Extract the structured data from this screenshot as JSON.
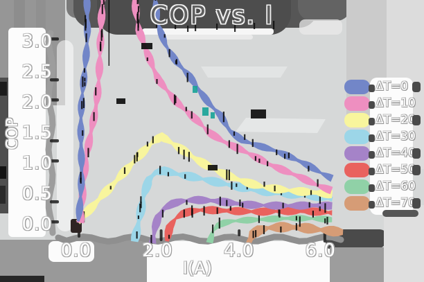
{
  "figure": {
    "title": "COP vs. I",
    "x_axis_label": "I(A)",
    "y_axis_label": "COP"
  },
  "chart_data": {
    "type": "line",
    "title": "COP vs. I",
    "xlabel": "I(A)",
    "ylabel": "COP",
    "x_ticks": [
      {
        "label": "0.0",
        "value": 0
      },
      {
        "label": "2.0",
        "value": 2
      },
      {
        "label": "4.0",
        "value": 4
      },
      {
        "label": "6.0",
        "value": 6
      }
    ],
    "y_ticks": [
      {
        "label": "0.0",
        "value": 0
      },
      {
        "label": "0.5",
        "value": 0.5
      },
      {
        "label": "1.0",
        "value": 1
      },
      {
        "label": "1.5",
        "value": 1.5
      },
      {
        "label": "2.0",
        "value": 2
      },
      {
        "label": "2.5",
        "value": 2.5
      },
      {
        "label": "3.0",
        "value": 3
      }
    ],
    "xlim": [
      0,
      6.6
    ],
    "ylim": [
      -0.3,
      3.45
    ],
    "grid": false,
    "legend_position": "right",
    "series": [
      {
        "name": "ΔT=0",
        "color": "#7286c8",
        "points": [
          [
            0.05,
            0.05
          ],
          [
            0.28,
            3.85
          ],
          [
            1.93,
            3.85
          ],
          [
            2.05,
            3.28
          ],
          [
            2.2,
            2.95
          ],
          [
            2.45,
            2.65
          ],
          [
            2.75,
            2.42
          ],
          [
            3.0,
            2.18
          ],
          [
            3.25,
            1.98
          ],
          [
            3.55,
            1.8
          ],
          [
            3.8,
            1.55
          ],
          [
            4.1,
            1.4
          ],
          [
            4.5,
            1.3
          ],
          [
            4.9,
            1.2
          ],
          [
            5.3,
            1.07
          ],
          [
            5.7,
            0.94
          ],
          [
            6.0,
            0.83
          ],
          [
            6.28,
            0.75
          ]
        ]
      },
      {
        "name": "ΔT=10",
        "color": "#ee8fc0",
        "points": [
          [
            0.07,
            0.03
          ],
          [
            0.45,
            1.9
          ],
          [
            0.63,
            3.1
          ],
          [
            0.7,
            3.85
          ],
          [
            1.45,
            3.85
          ],
          [
            1.55,
            3.2
          ],
          [
            1.7,
            2.85
          ],
          [
            1.86,
            2.55
          ],
          [
            2.0,
            2.35
          ],
          [
            2.2,
            2.2
          ],
          [
            2.45,
            2.02
          ],
          [
            2.7,
            1.88
          ],
          [
            3.0,
            1.72
          ],
          [
            3.3,
            1.52
          ],
          [
            3.6,
            1.38
          ],
          [
            3.95,
            1.25
          ],
          [
            4.3,
            1.12
          ],
          [
            4.7,
            0.97
          ],
          [
            5.1,
            0.87
          ],
          [
            5.5,
            0.78
          ],
          [
            5.9,
            0.67
          ],
          [
            6.28,
            0.58
          ]
        ]
      },
      {
        "name": "ΔT=20",
        "color": "#f8f59d",
        "points": [
          [
            0.07,
            0.02
          ],
          [
            0.45,
            0.3
          ],
          [
            0.85,
            0.62
          ],
          [
            1.25,
            0.95
          ],
          [
            1.6,
            1.2
          ],
          [
            1.9,
            1.38
          ],
          [
            2.1,
            1.44
          ],
          [
            2.35,
            1.32
          ],
          [
            2.6,
            1.2
          ],
          [
            2.9,
            1.06
          ],
          [
            3.2,
            0.95
          ],
          [
            3.5,
            0.86
          ],
          [
            3.85,
            0.78
          ],
          [
            4.2,
            0.71
          ],
          [
            4.6,
            0.64
          ],
          [
            5.0,
            0.59
          ],
          [
            5.45,
            0.54
          ],
          [
            5.9,
            0.5
          ],
          [
            6.28,
            0.47
          ]
        ]
      },
      {
        "name": "ΔT=30",
        "color": "#9cd6e8",
        "points": [
          [
            1.43,
            -0.28
          ],
          [
            1.52,
            0.12
          ],
          [
            1.63,
            0.5
          ],
          [
            1.78,
            0.75
          ],
          [
            1.95,
            0.85
          ],
          [
            2.15,
            0.87
          ],
          [
            2.5,
            0.8
          ],
          [
            2.9,
            0.75
          ],
          [
            3.3,
            0.7
          ],
          [
            3.7,
            0.66
          ],
          [
            4.1,
            0.62
          ],
          [
            4.5,
            0.58
          ],
          [
            4.9,
            0.54
          ],
          [
            5.3,
            0.5
          ],
          [
            5.7,
            0.46
          ],
          [
            6.0,
            0.43
          ],
          [
            6.28,
            0.39
          ]
        ]
      },
      {
        "name": "ΔT=40",
        "color": "#a583c8",
        "points": [
          [
            1.84,
            -0.3
          ],
          [
            1.92,
            -0.05
          ],
          [
            2.02,
            0.12
          ],
          [
            2.17,
            0.25
          ],
          [
            2.37,
            0.32
          ],
          [
            2.6,
            0.36
          ],
          [
            2.9,
            0.38
          ],
          [
            3.3,
            0.38
          ],
          [
            3.7,
            0.37
          ],
          [
            4.1,
            0.35
          ],
          [
            4.5,
            0.34
          ],
          [
            4.9,
            0.33
          ],
          [
            5.3,
            0.31
          ],
          [
            5.7,
            0.3
          ],
          [
            6.0,
            0.29
          ],
          [
            6.28,
            0.28
          ]
        ]
      },
      {
        "name": "ΔT=50",
        "color": "#e9625e",
        "points": [
          [
            2.26,
            -0.28
          ],
          [
            2.33,
            -0.05
          ],
          [
            2.46,
            0.08
          ],
          [
            2.62,
            0.16
          ],
          [
            2.82,
            0.21
          ],
          [
            3.05,
            0.24
          ],
          [
            3.35,
            0.25
          ],
          [
            3.7,
            0.25
          ],
          [
            4.1,
            0.24
          ],
          [
            4.5,
            0.22
          ],
          [
            4.9,
            0.21
          ],
          [
            5.3,
            0.2
          ],
          [
            5.7,
            0.19
          ],
          [
            6.28,
            0.18
          ]
        ]
      },
      {
        "name": "ΔT=60",
        "color": "#90d1a7",
        "points": [
          [
            3.27,
            -0.3
          ],
          [
            3.34,
            -0.1
          ],
          [
            3.46,
            0.0
          ],
          [
            3.62,
            0.05
          ],
          [
            3.82,
            0.08
          ],
          [
            4.1,
            0.09
          ],
          [
            4.5,
            0.09
          ],
          [
            4.9,
            0.085
          ],
          [
            5.3,
            0.08
          ],
          [
            5.7,
            0.075
          ],
          [
            6.28,
            0.07
          ]
        ]
      },
      {
        "name": "ΔT=70",
        "color": "#d69c76",
        "points": [
          [
            4.2,
            -0.3
          ],
          [
            4.32,
            -0.15
          ],
          [
            4.48,
            -0.09
          ],
          [
            4.72,
            -0.06
          ],
          [
            5.0,
            -0.06
          ],
          [
            5.3,
            -0.07
          ],
          [
            5.6,
            -0.08
          ],
          [
            5.9,
            -0.1
          ],
          [
            6.2,
            -0.11
          ],
          [
            6.55,
            -0.12
          ]
        ]
      }
    ]
  },
  "style": {
    "background": "#d6d8d8",
    "dark_blob": "#4d4d4d",
    "mid_grey": "#989898",
    "spine_grey": "#8f8f8f",
    "tick_black": "#1c1c1c",
    "text_white": "#ffffff",
    "legend_box": "#fcfcfc"
  }
}
